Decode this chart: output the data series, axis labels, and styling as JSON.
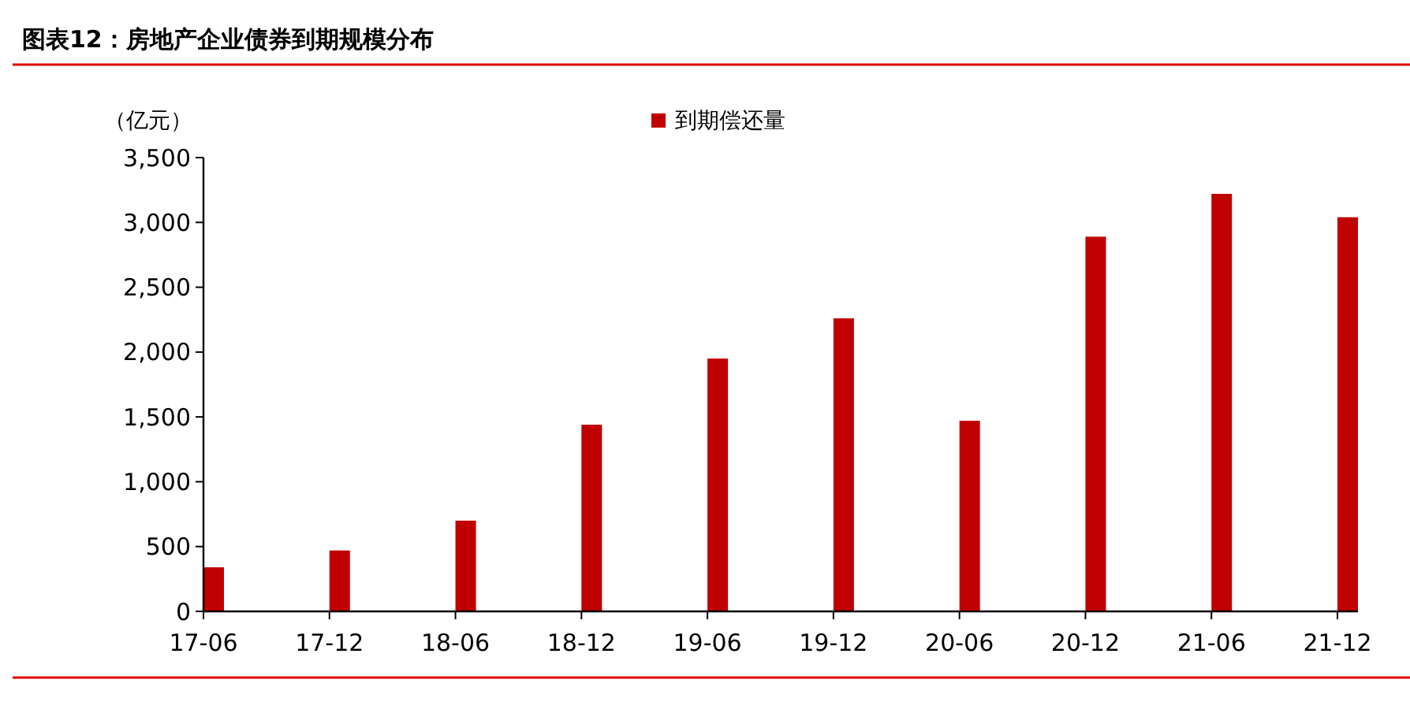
{
  "chart_data": {
    "type": "bar",
    "title": "图表12：房地产企业债券到期规模分布",
    "ylabel": "（亿元）",
    "categories": [
      "17-06",
      "17-12",
      "18-06",
      "18-12",
      "19-06",
      "19-12",
      "20-06",
      "20-12",
      "21-06",
      "21-12"
    ],
    "series": [
      {
        "name": "到期偿还量",
        "color": "#c00000",
        "values": [
          340,
          470,
          700,
          1440,
          1950,
          2260,
          1470,
          2890,
          3220,
          3040
        ]
      }
    ],
    "ylim": [
      0,
      3500
    ],
    "yticks": [
      {
        "value": 0,
        "label": "0"
      },
      {
        "value": 500,
        "label": "500"
      },
      {
        "value": 1000,
        "label": "1,000"
      },
      {
        "value": 1500,
        "label": "1,500"
      },
      {
        "value": 2000,
        "label": "2,000"
      },
      {
        "value": 2500,
        "label": "2,500"
      },
      {
        "value": 3000,
        "label": "3,000"
      },
      {
        "value": 3500,
        "label": "3,500"
      }
    ],
    "grid": false,
    "legend": "top"
  }
}
